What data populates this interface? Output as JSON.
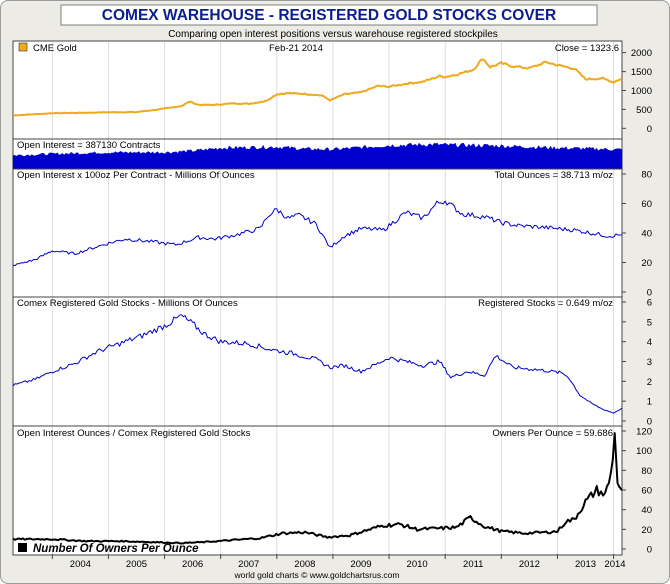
{
  "title": "COMEX WAREHOUSE - REGISTERED GOLD STOCKS COVER",
  "subtitle": "Comparing open interest positions versus warehouse registered stockpiles",
  "footer": "world gold charts © www.goldchartsrus.com",
  "chart_data": {
    "type": "line",
    "x_axis": {
      "labels": [
        "2004",
        "2005",
        "2006",
        "2007",
        "2008",
        "2009",
        "2010",
        "2011",
        "2012",
        "2013",
        "2014"
      ],
      "range": [
        2003.3,
        2014.15
      ]
    },
    "panels": [
      {
        "id": "price",
        "legend": "CME Gold",
        "date_label": "Feb-21  2014",
        "right_label": "Close = 1323.6",
        "ylim": [
          -150,
          2150
        ],
        "yticks": [
          "0",
          "500",
          "1000",
          "1500",
          "2000"
        ],
        "color": "#f0a81c",
        "series": [
          {
            "name": "CME Gold",
            "x": [
              2003.3,
              2004.0,
              2004.5,
              2005.0,
              2005.5,
              2005.9,
              2006.3,
              2006.45,
              2006.6,
              2006.9,
              2007.2,
              2007.5,
              2007.8,
              2008.0,
              2008.2,
              2008.5,
              2008.8,
              2008.95,
              2009.2,
              2009.5,
              2009.8,
              2010.0,
              2010.3,
              2010.6,
              2010.9,
              2011.0,
              2011.2,
              2011.5,
              2011.67,
              2011.8,
              2012.0,
              2012.2,
              2012.5,
              2012.8,
              2013.0,
              2013.3,
              2013.5,
              2013.8,
              2014.0,
              2014.15
            ],
            "y": [
              340,
              400,
              410,
              425,
              430,
              500,
              590,
              710,
              620,
              620,
              660,
              650,
              720,
              900,
              930,
              910,
              870,
              740,
              900,
              950,
              1120,
              1100,
              1180,
              1230,
              1380,
              1360,
              1420,
              1550,
              1850,
              1620,
              1720,
              1640,
              1590,
              1750,
              1670,
              1580,
              1300,
              1320,
              1220,
              1323.6
            ]
          }
        ]
      },
      {
        "id": "open_interest",
        "legend": "Open Interest = 387130 Contracts",
        "color": "#0000cc",
        "series": [
          {
            "name": "Open Interest",
            "x": [
              2003.3,
              2004.0,
              2005.0,
              2006.0,
              2006.5,
              2007.0,
              2008.0,
              2008.5,
              2009.0,
              2010.0,
              2010.8,
              2011.0,
              2011.6,
              2012.0,
              2013.0,
              2014.15
            ],
            "y": [
              270,
              300,
              330,
              330,
              360,
              420,
              440,
              400,
              390,
              470,
              490,
              480,
              470,
              460,
              420,
              387
            ]
          }
        ]
      },
      {
        "id": "oz",
        "legend": "Open Interest x 100oz Per Contract - Millions Of Ounces",
        "right_label": "Total Ounces = 38.713 m/oz",
        "ylim": [
          0,
          80
        ],
        "yticks": [
          "0",
          "20",
          "40",
          "60",
          "80"
        ],
        "color": "#0000cc",
        "series": [
          {
            "name": "Open Interest Ounces",
            "x": [
              2003.3,
              2003.7,
              2004.0,
              2004.4,
              2004.9,
              2005.3,
              2005.8,
              2006.2,
              2006.6,
              2006.9,
              2007.3,
              2007.7,
              2007.85,
              2008.0,
              2008.2,
              2008.4,
              2008.7,
              2008.95,
              2009.2,
              2009.5,
              2009.9,
              2010.1,
              2010.3,
              2010.6,
              2010.85,
              2011.0,
              2011.3,
              2011.7,
              2012.0,
              2012.3,
              2012.7,
              2013.0,
              2013.3,
              2013.6,
              2013.9,
              2014.15
            ],
            "y": [
              18,
              22,
              28,
              26,
              32,
              36,
              34,
              32,
              37,
              36,
              39,
              43,
              52,
              56,
              50,
              52,
              46,
              30,
              38,
              43,
              42,
              48,
              54,
              50,
              60,
              62,
              53,
              51,
              47,
              45,
              44,
              43,
              42,
              40,
              38,
              38.7
            ]
          }
        ]
      },
      {
        "id": "stocks",
        "legend": "Comex Registered Gold Stocks - Millions Of Ounces",
        "right_label": "Registered Stocks = 0.649 m/oz",
        "ylim": [
          0,
          6
        ],
        "yticks": [
          "0",
          "1",
          "2",
          "3",
          "4",
          "5",
          "6"
        ],
        "color": "#0000cc",
        "series": [
          {
            "name": "Registered Stocks",
            "x": [
              2003.3,
              2003.7,
              2004.0,
              2004.4,
              2004.8,
              2005.2,
              2005.6,
              2006.0,
              2006.3,
              2006.5,
              2006.7,
              2007.0,
              2007.5,
              2007.9,
              2008.3,
              2008.7,
              2008.95,
              2009.2,
              2009.5,
              2009.8,
              2010.0,
              2010.3,
              2010.6,
              2010.9,
              2011.1,
              2011.4,
              2011.7,
              2011.9,
              2012.2,
              2012.6,
              2012.9,
              2013.1,
              2013.2,
              2013.4,
              2013.6,
              2013.8,
              2014.0,
              2014.15
            ],
            "y": [
              1.8,
              2.1,
              2.5,
              2.9,
              3.5,
              3.9,
              4.3,
              4.8,
              5.3,
              4.9,
              4.4,
              4.0,
              3.9,
              3.6,
              3.4,
              3.1,
              2.7,
              2.8,
              2.5,
              2.9,
              3.2,
              3.0,
              2.8,
              3.0,
              2.2,
              2.5,
              2.3,
              3.3,
              2.7,
              2.6,
              2.5,
              2.4,
              2.2,
              1.3,
              0.9,
              0.6,
              0.4,
              0.649
            ]
          }
        ]
      },
      {
        "id": "owners",
        "legend": "Open Interest Ounces / Comex Registered Gold Stocks",
        "right_label": "Owners Per Ounce = 59.686",
        "series_label": "Number Of Owners Per Ounce",
        "ylim": [
          0,
          120
        ],
        "yticks": [
          "0",
          "20",
          "40",
          "60",
          "80",
          "100",
          "120"
        ],
        "color": "#000000",
        "series": [
          {
            "name": "Number Of Owners Per Ounce",
            "x": [
              2003.3,
              2004.0,
              2004.6,
              2005.2,
              2005.8,
              2006.3,
              2006.7,
              2007.2,
              2007.7,
              2008.1,
              2008.5,
              2008.9,
              2009.3,
              2009.6,
              2009.9,
              2010.2,
              2010.5,
              2010.9,
              2011.2,
              2011.45,
              2011.7,
              2012.0,
              2012.4,
              2012.8,
              2013.0,
              2013.15,
              2013.3,
              2013.5,
              2013.7,
              2013.85,
              2013.95,
              2014.02,
              2014.07,
              2014.1,
              2014.15
            ],
            "y": [
              10,
              10,
              8,
              8,
              7,
              6,
              7,
              9,
              11,
              16,
              17,
              12,
              14,
              19,
              24,
              25,
              20,
              21,
              22,
              32,
              23,
              18,
              16,
              17,
              18,
              28,
              30,
              48,
              60,
              55,
              75,
              115,
              70,
              64,
              59.7
            ]
          }
        ]
      }
    ]
  }
}
